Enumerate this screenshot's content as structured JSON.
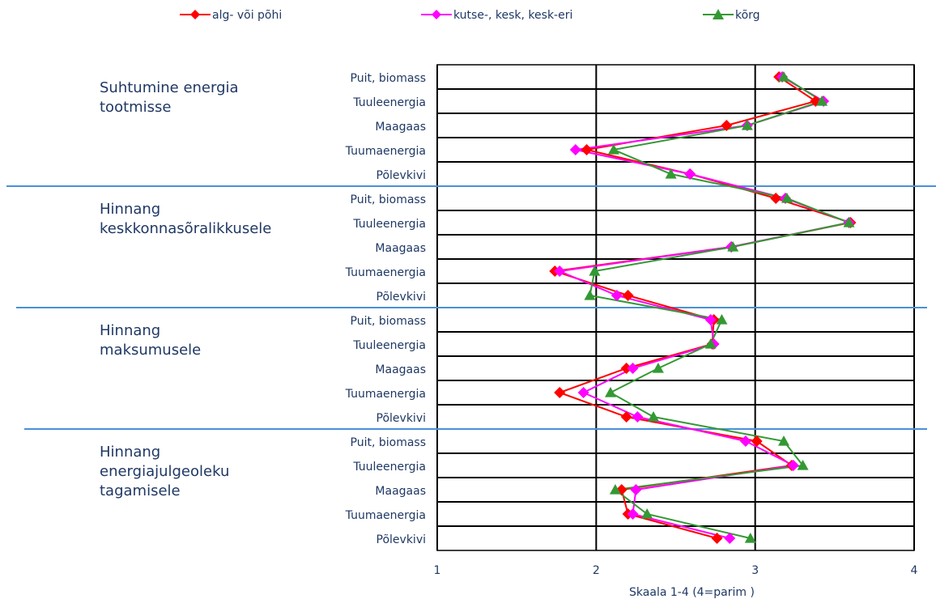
{
  "chart_data": {
    "type": "line",
    "orientation": "horizontal",
    "categories": [
      "Puit, biomass",
      "Tuuleenergia",
      "Maagaas",
      "Tuumaenergia",
      "Põlevkivi",
      "Puit, biomass",
      "Tuuleenergia",
      "Maagaas",
      "Tuumaenergia",
      "Põlevkivi",
      "Puit, biomass",
      "Tuuleenergia",
      "Maagaas",
      "Tuumaenergia",
      "Põlevkivi",
      "Puit, biomass",
      "Tuuleenergia",
      "Maagaas",
      "Tuumaenergia",
      "Põlevkivi"
    ],
    "groups": [
      "Suhtumine energia tootmisse",
      "Hinnang keskkonnasõralikkusele",
      "Hinnang maksumusele",
      "Hinnang energiajulgeoleku tagamisele"
    ],
    "series": [
      {
        "name": "alg- või põhi",
        "color": "#ff0000",
        "marker": "diamond",
        "values": [
          3.15,
          3.38,
          2.82,
          1.94,
          2.59,
          3.13,
          3.6,
          2.85,
          1.74,
          2.2,
          2.74,
          2.73,
          2.19,
          1.77,
          2.19,
          3.01,
          3.23,
          2.16,
          2.2,
          2.76
        ]
      },
      {
        "name": "kutse-, kesk, kesk-eri",
        "color": "#ff00ff",
        "marker": "diamond",
        "values": [
          3.17,
          3.43,
          2.95,
          1.87,
          2.59,
          3.19,
          3.59,
          2.85,
          1.77,
          2.13,
          2.72,
          2.74,
          2.23,
          1.92,
          2.26,
          2.94,
          3.24,
          2.25,
          2.23,
          2.84
        ]
      },
      {
        "name": "kõrg",
        "color": "#339933",
        "marker": "triangle",
        "values": [
          3.18,
          3.42,
          2.95,
          2.11,
          2.47,
          3.2,
          3.59,
          2.86,
          1.99,
          1.96,
          2.79,
          2.72,
          2.39,
          2.09,
          2.36,
          3.18,
          3.3,
          2.12,
          2.32,
          2.97
        ]
      }
    ],
    "xlabel": "Skaala 1-4 (4=parim )",
    "xlim": [
      1,
      4
    ],
    "xticks": [
      1,
      2,
      3,
      4
    ],
    "grid": true,
    "legend": "top"
  }
}
